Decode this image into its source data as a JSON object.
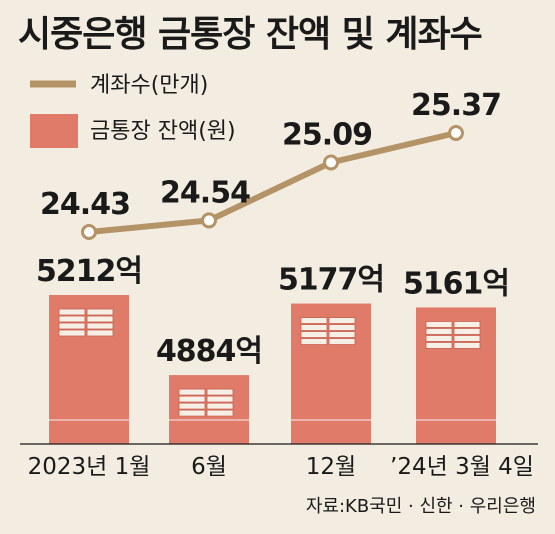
{
  "header": {
    "title": "시중은행 금통장 잔액 및 계좌수"
  },
  "legend": {
    "accounts_label": "계좌수(만개)",
    "balance_label": "금통장 잔액(원)"
  },
  "colors": {
    "background": "#f3ede1",
    "line": "#b49467",
    "bar": "#e07b6a",
    "bar_dark": "#c9604f",
    "text": "#1a1a1a"
  },
  "chart_data": {
    "type": "bar+line",
    "title": "시중은행 금통장 잔액 및 계좌수",
    "categories": [
      "2023년 1월",
      "6월",
      "12월",
      "’24년 3월 4일"
    ],
    "series": [
      {
        "name": "계좌수(만개)",
        "type": "line",
        "values": [
          24.43,
          24.54,
          25.09,
          25.37
        ],
        "labels": [
          "24.43",
          "24.54",
          "25.09",
          "25.37"
        ]
      },
      {
        "name": "금통장 잔액(원)",
        "type": "bar",
        "values": [
          5212,
          4884,
          5177,
          5161
        ],
        "labels": [
          "5212억",
          "4884억",
          "5177억",
          "5161억"
        ]
      }
    ],
    "legend_position": "top-left",
    "grid": false
  },
  "source": {
    "text": "자료:KB국민 · 신한 · 우리은행"
  }
}
